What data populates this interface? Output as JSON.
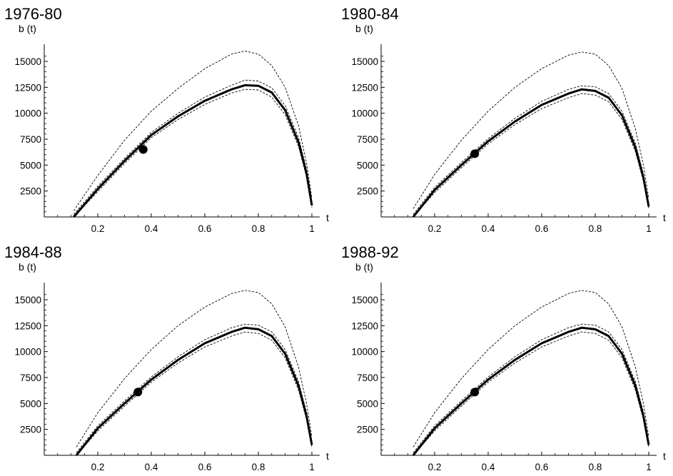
{
  "chart_data": [
    {
      "type": "line",
      "title": "1976-80",
      "xlabel": "t",
      "ylabel": "b (t)",
      "xlim": [
        0.0,
        1.0
      ],
      "ylim": [
        0,
        16300
      ],
      "x_ticks": [
        "0.2",
        "0.4",
        "0.6",
        "0.8",
        "1"
      ],
      "y_ticks": [
        "2500",
        "5000",
        "7500",
        "10000",
        "12500",
        "15000"
      ],
      "series": [
        {
          "style": "thick",
          "x": [
            0.11,
            0.2,
            0.3,
            0.4,
            0.5,
            0.6,
            0.7,
            0.75,
            0.8,
            0.85,
            0.9,
            0.95,
            0.98,
            1.0
          ],
          "y": [
            0,
            2700,
            5400,
            7900,
            9700,
            11200,
            12300,
            12700,
            12650,
            12000,
            10300,
            7200,
            4200,
            1100
          ]
        },
        {
          "style": "dashed-upper",
          "x": [
            0.11,
            0.2,
            0.3,
            0.4,
            0.5,
            0.6,
            0.7,
            0.75,
            0.8,
            0.85,
            0.9,
            0.95,
            0.98,
            1.0
          ],
          "y": [
            600,
            4000,
            7400,
            10200,
            12400,
            14300,
            15700,
            16000,
            15700,
            14600,
            12500,
            8800,
            5200,
            1800
          ]
        },
        {
          "style": "dashed-band-upper",
          "x": [
            0.11,
            0.2,
            0.3,
            0.4,
            0.5,
            0.6,
            0.7,
            0.75,
            0.8,
            0.85,
            0.9,
            0.95,
            0.98,
            1.0
          ],
          "y": [
            250,
            2950,
            5650,
            8150,
            10000,
            11550,
            12700,
            13200,
            13100,
            12450,
            10750,
            7650,
            4600,
            1400
          ]
        },
        {
          "style": "dashed-band-lower",
          "x": [
            0.11,
            0.2,
            0.3,
            0.4,
            0.5,
            0.6,
            0.7,
            0.75,
            0.8,
            0.85,
            0.9,
            0.95,
            0.98,
            1.0
          ],
          "y": [
            0,
            2450,
            5150,
            7650,
            9400,
            10850,
            11950,
            12300,
            12250,
            11550,
            9850,
            6800,
            3850,
            900
          ]
        }
      ],
      "marker": {
        "x": 0.37,
        "y": 6500
      }
    },
    {
      "type": "line",
      "title": "1980-84",
      "xlabel": "t",
      "ylabel": "b (t)",
      "xlim": [
        0.0,
        1.0
      ],
      "ylim": [
        0,
        16300
      ],
      "x_ticks": [
        "0.2",
        "0.4",
        "0.6",
        "0.8",
        "1"
      ],
      "y_ticks": [
        "2500",
        "5000",
        "7500",
        "10000",
        "12500",
        "15000"
      ],
      "series": [
        {
          "style": "thick",
          "x": [
            0.12,
            0.2,
            0.3,
            0.4,
            0.5,
            0.6,
            0.7,
            0.75,
            0.8,
            0.85,
            0.9,
            0.95,
            0.98,
            1.0
          ],
          "y": [
            0,
            2600,
            5000,
            7300,
            9200,
            10800,
            11900,
            12300,
            12150,
            11500,
            9800,
            6700,
            3800,
            1000
          ]
        },
        {
          "style": "dashed-upper",
          "x": [
            0.12,
            0.2,
            0.3,
            0.4,
            0.5,
            0.6,
            0.7,
            0.75,
            0.8,
            0.85,
            0.9,
            0.95,
            0.98,
            1.0
          ],
          "y": [
            800,
            4100,
            7400,
            10200,
            12500,
            14300,
            15600,
            15900,
            15700,
            14600,
            12400,
            8500,
            5000,
            1800
          ]
        },
        {
          "style": "dashed-band-upper",
          "x": [
            0.12,
            0.2,
            0.3,
            0.4,
            0.5,
            0.6,
            0.7,
            0.75,
            0.8,
            0.85,
            0.9,
            0.95,
            0.98,
            1.0
          ],
          "y": [
            250,
            2850,
            5250,
            7550,
            9500,
            11150,
            12300,
            12650,
            12550,
            11900,
            10200,
            7100,
            4150,
            1300
          ]
        },
        {
          "style": "dashed-band-lower",
          "x": [
            0.12,
            0.2,
            0.3,
            0.4,
            0.5,
            0.6,
            0.7,
            0.75,
            0.8,
            0.85,
            0.9,
            0.95,
            0.98,
            1.0
          ],
          "y": [
            0,
            2350,
            4750,
            7050,
            8900,
            10450,
            11500,
            11900,
            11750,
            11100,
            9400,
            6300,
            3450,
            800
          ]
        }
      ],
      "marker": {
        "x": 0.35,
        "y": 6100
      }
    },
    {
      "type": "line",
      "title": "1984-88",
      "xlabel": "t",
      "ylabel": "b (t)",
      "xlim": [
        0.0,
        1.0
      ],
      "ylim": [
        0,
        16300
      ],
      "x_ticks": [
        "0.2",
        "0.4",
        "0.6",
        "0.8",
        "1"
      ],
      "y_ticks": [
        "2500",
        "5000",
        "7500",
        "10000",
        "12500",
        "15000"
      ],
      "series": [
        {
          "style": "thick",
          "x": [
            0.12,
            0.2,
            0.3,
            0.4,
            0.5,
            0.6,
            0.7,
            0.75,
            0.8,
            0.85,
            0.9,
            0.95,
            0.98,
            1.0
          ],
          "y": [
            0,
            2600,
            5000,
            7300,
            9200,
            10800,
            11900,
            12300,
            12150,
            11500,
            9800,
            6700,
            3800,
            1000
          ]
        },
        {
          "style": "dashed-upper",
          "x": [
            0.12,
            0.2,
            0.3,
            0.4,
            0.5,
            0.6,
            0.7,
            0.75,
            0.8,
            0.85,
            0.9,
            0.95,
            0.98,
            1.0
          ],
          "y": [
            800,
            4100,
            7400,
            10200,
            12500,
            14300,
            15600,
            15900,
            15700,
            14600,
            12400,
            8500,
            5000,
            1800
          ]
        },
        {
          "style": "dashed-band-upper",
          "x": [
            0.12,
            0.2,
            0.3,
            0.4,
            0.5,
            0.6,
            0.7,
            0.75,
            0.8,
            0.85,
            0.9,
            0.95,
            0.98,
            1.0
          ],
          "y": [
            250,
            2850,
            5250,
            7550,
            9500,
            11150,
            12300,
            12650,
            12550,
            11900,
            10200,
            7100,
            4150,
            1300
          ]
        },
        {
          "style": "dashed-band-lower",
          "x": [
            0.12,
            0.2,
            0.3,
            0.4,
            0.5,
            0.6,
            0.7,
            0.75,
            0.8,
            0.85,
            0.9,
            0.95,
            0.98,
            1.0
          ],
          "y": [
            0,
            2350,
            4750,
            7050,
            8900,
            10450,
            11500,
            11900,
            11750,
            11100,
            9400,
            6300,
            3450,
            800
          ]
        }
      ],
      "marker": {
        "x": 0.35,
        "y": 6100
      }
    },
    {
      "type": "line",
      "title": "1988-92",
      "xlabel": "t",
      "ylabel": "b (t)",
      "xlim": [
        0.0,
        1.0
      ],
      "ylim": [
        0,
        16300
      ],
      "x_ticks": [
        "0.2",
        "0.4",
        "0.6",
        "0.8",
        "1"
      ],
      "y_ticks": [
        "2500",
        "5000",
        "7500",
        "10000",
        "12500",
        "15000"
      ],
      "series": [
        {
          "style": "thick",
          "x": [
            0.12,
            0.2,
            0.3,
            0.4,
            0.5,
            0.6,
            0.7,
            0.75,
            0.8,
            0.85,
            0.9,
            0.95,
            0.98,
            1.0
          ],
          "y": [
            0,
            2600,
            5000,
            7300,
            9200,
            10800,
            11900,
            12300,
            12150,
            11500,
            9800,
            6700,
            3800,
            1000
          ]
        },
        {
          "style": "dashed-upper",
          "x": [
            0.12,
            0.2,
            0.3,
            0.4,
            0.5,
            0.6,
            0.7,
            0.75,
            0.8,
            0.85,
            0.9,
            0.95,
            0.98,
            1.0
          ],
          "y": [
            800,
            4100,
            7400,
            10200,
            12500,
            14300,
            15600,
            15900,
            15700,
            14600,
            12400,
            8500,
            5000,
            1800
          ]
        },
        {
          "style": "dashed-band-upper",
          "x": [
            0.12,
            0.2,
            0.3,
            0.4,
            0.5,
            0.6,
            0.7,
            0.75,
            0.8,
            0.85,
            0.9,
            0.95,
            0.98,
            1.0
          ],
          "y": [
            250,
            2850,
            5250,
            7550,
            9500,
            11150,
            12300,
            12650,
            12550,
            11900,
            10200,
            7100,
            4150,
            1300
          ]
        },
        {
          "style": "dashed-band-lower",
          "x": [
            0.12,
            0.2,
            0.3,
            0.4,
            0.5,
            0.6,
            0.7,
            0.75,
            0.8,
            0.85,
            0.9,
            0.95,
            0.98,
            1.0
          ],
          "y": [
            0,
            2350,
            4750,
            7050,
            8900,
            10450,
            11500,
            11900,
            11750,
            11100,
            9400,
            6300,
            3450,
            800
          ]
        }
      ],
      "marker": {
        "x": 0.35,
        "y": 6100
      }
    }
  ]
}
